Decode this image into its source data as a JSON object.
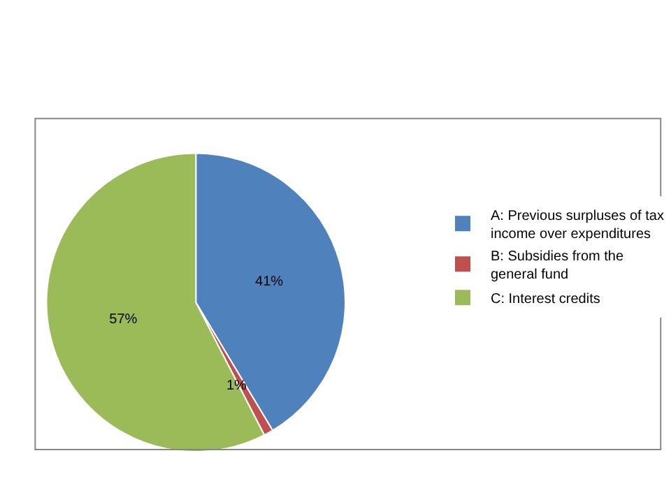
{
  "chart_data": {
    "type": "pie",
    "categories": [
      "A: Previous surpluses of tax income over expenditures",
      "B: Subsidies from the general fund",
      "C: Interest credits"
    ],
    "values": [
      41,
      1,
      57
    ],
    "colors": [
      "#4f81bd",
      "#c0504d",
      "#9bbb59"
    ],
    "value_labels": [
      "41%",
      "1%",
      "57%"
    ],
    "legend": "right"
  }
}
